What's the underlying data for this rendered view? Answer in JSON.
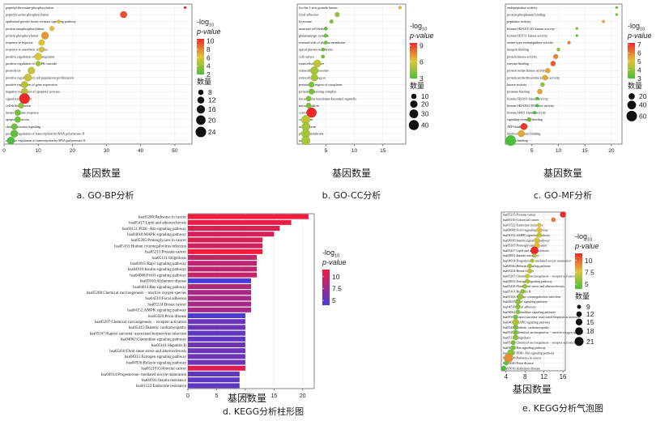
{
  "chart_data": [
    {
      "id": "a",
      "type": "scatter",
      "caption": "a.  GO-BP分析",
      "xlabel": "基因数量",
      "xlim": [
        0,
        55
      ],
      "xticks": [
        0,
        10,
        20,
        30,
        40,
        50
      ],
      "terms": [
        {
          "label": "peptidyl-threonine phosphorylation",
          "x": 53,
          "lp": 10.5,
          "n": 3
        },
        {
          "label": "peptidyl-serine phosphorylation",
          "x": 35,
          "lp": 9.5,
          "n": 12
        },
        {
          "label": "epidermal growth factor receptor signaling pathway",
          "x": 16,
          "lp": 6.0,
          "n": 5
        },
        {
          "label": "protein autophosphorylation",
          "x": 14,
          "lp": 6.5,
          "n": 7
        },
        {
          "label": "protein phosphorylation",
          "x": 12,
          "lp": 7.5,
          "n": 14
        },
        {
          "label": "response to hypoxia",
          "x": 11,
          "lp": 6.0,
          "n": 10
        },
        {
          "label": "response to anesthetic stimulus",
          "x": 11,
          "lp": 5.5,
          "n": 9
        },
        {
          "label": "positive regulation of cell migration",
          "x": 10,
          "lp": 6.0,
          "n": 13
        },
        {
          "label": "positive regulation of MAPK cascade",
          "x": 10,
          "lp": 4.5,
          "n": 8
        },
        {
          "label": "proteolysis",
          "x": 8,
          "lp": 5.5,
          "n": 13
        },
        {
          "label": "positive regulation of cell population proliferation",
          "x": 7,
          "lp": 5.5,
          "n": 14
        },
        {
          "label": "positive regulation of gene expression",
          "x": 6,
          "lp": 5.0,
          "n": 12
        },
        {
          "label": "negative regulation of apoptotic process",
          "x": 6,
          "lp": 5.0,
          "n": 12
        },
        {
          "label": "signal transduction",
          "x": 6,
          "lp": 10.5,
          "n": 24
        },
        {
          "label": "cell differentiation",
          "x": 5,
          "lp": 4.0,
          "n": 9
        },
        {
          "label": "innate immune response",
          "x": 4,
          "lp": 3.0,
          "n": 10
        },
        {
          "label": "apoptotic process",
          "x": 4,
          "lp": 3.0,
          "n": 10
        },
        {
          "label": "chemoattractant signaling",
          "x": 3,
          "lp": 3.0,
          "n": 10
        },
        {
          "label": "positive regulation of transcription by RNA polymerase II",
          "x": 3,
          "lp": 2.5,
          "n": 14
        },
        {
          "label": "negative regulation of transcription by RNA polymerase II",
          "x": 2,
          "lp": 2.0,
          "n": 14
        }
      ],
      "color_title": "-log10",
      "color_title_main": "-log",
      "color_title_sub": "10",
      "color_title2": "p-value",
      "color_ticks": [
        10,
        8,
        6,
        4,
        2
      ],
      "color_range": [
        2,
        10.5
      ],
      "size_title": "数量",
      "size_ticks": [
        8,
        12,
        16,
        20,
        24
      ],
      "size_range": [
        3,
        24
      ]
    },
    {
      "id": "b",
      "type": "scatter",
      "caption": "b.  GO-CC分析",
      "xlabel": "基因数量",
      "xlim": [
        0,
        19
      ],
      "xticks": [
        5,
        10,
        15
      ],
      "terms": [
        {
          "label": "ficolin-1-rich granule lumen",
          "x": 18,
          "lp": 6.5,
          "n": 3
        },
        {
          "label": "focal adhesion",
          "x": 7,
          "lp": 4.5,
          "n": 8
        },
        {
          "label": "lysosome",
          "x": 6,
          "lp": 4.0,
          "n": 5
        },
        {
          "label": "neuronal cell body",
          "x": 5,
          "lp": 3.5,
          "n": 4
        },
        {
          "label": "glutamatergic synapse",
          "x": 5,
          "lp": 3.5,
          "n": 4
        },
        {
          "label": "external side of plasma membrane",
          "x": 5,
          "lp": 3.5,
          "n": 4
        },
        {
          "label": "apical plasma membrane",
          "x": 4.5,
          "lp": 3.5,
          "n": 4
        },
        {
          "label": "cell surface",
          "x": 4.5,
          "lp": 3.5,
          "n": 4
        },
        {
          "label": "extracellular space",
          "x": 3.5,
          "lp": 5.5,
          "n": 22
        },
        {
          "label": "extracellular exosome",
          "x": 3,
          "lp": 5.0,
          "n": 26
        },
        {
          "label": "extracellular region",
          "x": 3,
          "lp": 5.0,
          "n": 20
        },
        {
          "label": "perinuclear region of cytoplasm",
          "x": 2.5,
          "lp": 4.0,
          "n": 12
        },
        {
          "label": "protein-containing complex",
          "x": 2.5,
          "lp": 4.0,
          "n": 12
        },
        {
          "label": "intracellular membrane-bounded organelle",
          "x": 2,
          "lp": 4.0,
          "n": 10
        },
        {
          "label": "mitochondrion",
          "x": 2,
          "lp": 4.0,
          "n": 10
        },
        {
          "label": "cytosol",
          "x": 2.5,
          "lp": 9.5,
          "n": 40
        },
        {
          "label": "cytoplasm",
          "x": 1.5,
          "lp": 5.5,
          "n": 30
        },
        {
          "label": "nucleoplasm",
          "x": 1.5,
          "lp": 5.0,
          "n": 28
        },
        {
          "label": "plasma membrane",
          "x": 1.5,
          "lp": 5.0,
          "n": 30
        },
        {
          "label": "nucleus",
          "x": 1.5,
          "lp": 5.0,
          "n": 30
        }
      ],
      "color_title": "-log10",
      "color_title_main": "-log",
      "color_title_sub": "10",
      "color_title2": "p-value",
      "color_ticks": [
        9,
        6,
        3
      ],
      "color_range": [
        3,
        9.5
      ],
      "size_title": "数量",
      "size_ticks": [
        10,
        20,
        30,
        40
      ],
      "size_range": [
        3,
        40
      ]
    },
    {
      "id": "c",
      "type": "scatter",
      "caption": "c.  GO-MF分析",
      "xlabel": "基因数量",
      "xlim": [
        0,
        22
      ],
      "xticks": [
        5,
        10,
        15,
        20
      ],
      "terms": [
        {
          "label": "endopeptidase activity",
          "x": 21,
          "lp": 3.5,
          "n": 3
        },
        {
          "label": "protein phosphatase binding",
          "x": 21,
          "lp": 3.5,
          "n": 3
        },
        {
          "label": "peptidase activity",
          "x": 18.5,
          "lp": 5.5,
          "n": 4
        },
        {
          "label": "histone H2AXY142 kinase activity",
          "x": 13.5,
          "lp": 3.5,
          "n": 3
        },
        {
          "label": "histone H3T11 kinase activity",
          "x": 13.5,
          "lp": 3.5,
          "n": 3
        },
        {
          "label": "serine-type endopeptidase activity",
          "x": 12,
          "lp": 6.0,
          "n": 5
        },
        {
          "label": "integrin binding",
          "x": 10,
          "lp": 4.0,
          "n": 6
        },
        {
          "label": "protein kinase activity",
          "x": 9.5,
          "lp": 6.0,
          "n": 12
        },
        {
          "label": "enzyme binding",
          "x": 9,
          "lp": 6.5,
          "n": 14
        },
        {
          "label": "protein serine kinase activity",
          "x": 8,
          "lp": 5.5,
          "n": 14
        },
        {
          "label": "protein serine/threonine kinase activity",
          "x": 7.5,
          "lp": 5.5,
          "n": 15
        },
        {
          "label": "kinase activity",
          "x": 7,
          "lp": 4.0,
          "n": 10
        },
        {
          "label": "protease binding",
          "x": 6.5,
          "lp": 5.5,
          "n": 14
        },
        {
          "label": "histone H2AS1 kinase activity",
          "x": 6,
          "lp": 3.0,
          "n": 5
        },
        {
          "label": "histone H2AXS139 kinase activity",
          "x": 6,
          "lp": 3.0,
          "n": 5
        },
        {
          "label": "histone H4S1 kinase activity",
          "x": 5.5,
          "lp": 3.0,
          "n": 5
        },
        {
          "label": "signaling receptor binding",
          "x": 4.5,
          "lp": 3.5,
          "n": 10
        },
        {
          "label": "ATP binding",
          "x": 3.5,
          "lp": 7.0,
          "n": 25
        },
        {
          "label": "identical protein binding",
          "x": 3,
          "lp": 5.5,
          "n": 24
        },
        {
          "label": "protein binding",
          "x": 1,
          "lp": 3.0,
          "n": 60
        }
      ],
      "color_title": "-log10",
      "color_title_main": "-log",
      "color_title_sub": "10",
      "color_title2": "p-value",
      "color_ticks": [
        7,
        6,
        5,
        4,
        3
      ],
      "color_range": [
        3,
        7.2
      ],
      "size_title": "数量",
      "size_ticks": [
        20,
        40,
        60
      ],
      "size_range": [
        3,
        60
      ]
    },
    {
      "id": "d",
      "type": "bar",
      "orientation": "horizontal",
      "caption": "d.  KEGG分析柱形图",
      "xlabel": "基因数量",
      "xlim": [
        0,
        22
      ],
      "xticks": [
        0,
        5,
        10,
        15,
        20
      ],
      "categories": [
        "hsa05200:Pathways in cancer",
        "hsa05417:Lipid and atherosclerosis",
        "hsa04151:PI3K−Akt signaling pathway",
        "hsa04010:MAPK signaling pathway",
        "hsa05205:Proteoglycans in cancer",
        "hsa05163:Human cytomegalovirus infection",
        "hsa05215:Prostate cancer",
        "hsa05131:Shigellosis",
        "hsa04015:Rap1 signaling pathway",
        "hsa04910:Insulin signaling pathway",
        "hsa04068:FoxO signaling pathway",
        "hsa05010:Alzheimer disease",
        "hsa04014:Ras signaling pathway",
        "hsa05208:Chemical carcinogenesis − reactive oxygen species",
        "hsa04510:Focal adhesion",
        "hsa05224:Breast cancer",
        "hsa04152:AMPK signaling pathway",
        "hsa05020:Prion disease",
        "hsa05207:Chemical carcinogenesis − receptor activation",
        "hsa05415:Diabetic cardiomyopathy",
        "hsa05167:Kaposi sarcoma−associated herpesvirus infection",
        "hsa04062:Chemokine signaling pathway",
        "hsa05161:Hepatitis B",
        "hsa05418:Fluid shear stress and atherosclerosis",
        "hsa04915:Estrogen signaling pathway",
        "hsa04926:Relaxin signaling pathway",
        "hsa05210:Colorectal cancer",
        "hsa04914:Progesterone−mediated oocyte maturation",
        "hsa04931:Insulin resistance",
        "hsa01522:Endocrine resistance"
      ],
      "values": [
        21,
        18,
        16,
        15,
        13,
        13,
        13,
        12,
        12,
        12,
        12,
        11,
        11,
        11,
        11,
        11,
        11,
        10,
        10,
        10,
        10,
        10,
        10,
        10,
        10,
        10,
        10,
        9,
        9,
        9
      ],
      "lp": [
        11.5,
        11.0,
        10.5,
        10.0,
        10.5,
        10.0,
        11.5,
        9.5,
        9.0,
        9.0,
        9.5,
        4.0,
        8.5,
        8.0,
        8.0,
        8.0,
        8.0,
        4.0,
        5.5,
        5.5,
        5.0,
        5.0,
        5.5,
        5.5,
        5.5,
        5.5,
        10.5,
        5.0,
        5.0,
        5.0
      ],
      "color_title": "-log10",
      "color_title_main": "-log",
      "color_title_sub": "10",
      "color_title2": "p-value",
      "color_ticks": [
        10.0,
        7.5,
        5.0
      ],
      "color_range": [
        4,
        11.5
      ]
    },
    {
      "id": "e",
      "type": "scatter",
      "caption": "e.  KEGG分析气泡图",
      "xlabel": "基因数量",
      "xlim": [
        3,
        16.5
      ],
      "xticks": [
        4,
        8,
        12,
        16
      ],
      "terms": [
        {
          "label": "hsa05215:Prostate cancer",
          "x": 16,
          "lp": 11.5,
          "n": 13
        },
        {
          "label": "hsa05210:Colorectal cancer",
          "x": 14,
          "lp": 9.5,
          "n": 10
        },
        {
          "label": "hsa01522:Endocrine resistance",
          "x": 11,
          "lp": 7.5,
          "n": 9
        },
        {
          "label": "hsa04068:FoxO signaling pathway",
          "x": 11,
          "lp": 8.0,
          "n": 12
        },
        {
          "label": "hsa04152:AMPK signaling pathway",
          "x": 11,
          "lp": 7.0,
          "n": 11
        },
        {
          "label": "hsa04910:Insulin signaling pathway",
          "x": 10.5,
          "lp": 7.5,
          "n": 12
        },
        {
          "label": "hsa05205:Proteoglycans in cancer",
          "x": 10.5,
          "lp": 8.0,
          "n": 13
        },
        {
          "label": "hsa05417:Lipid and atherosclerosis",
          "x": 10,
          "lp": 11.5,
          "n": 18
        },
        {
          "label": "hsa04931:Insulin resistance",
          "x": 10,
          "lp": 6.5,
          "n": 9
        },
        {
          "label": "hsa04914:Progesterone−mediated oocyte maturation",
          "x": 9.5,
          "lp": 6.5,
          "n": 9
        },
        {
          "label": "hsa04926:Relaxin signaling pathway",
          "x": 9,
          "lp": 6.5,
          "n": 10
        },
        {
          "label": "hsa05224:Breast cancer",
          "x": 9,
          "lp": 7.0,
          "n": 11
        },
        {
          "label": "hsa05207:Chemical carcinogenesis − receptor activation",
          "x": 8.5,
          "lp": 7.0,
          "n": 10
        },
        {
          "label": "hsa04915:Estrogen signaling pathway",
          "x": 8.5,
          "lp": 6.5,
          "n": 10
        },
        {
          "label": "hsa05418:Fluid shear stress and atherosclerosis",
          "x": 8,
          "lp": 6.0,
          "n": 10
        },
        {
          "label": "hsa05161:Hepatitis B",
          "x": 7.5,
          "lp": 5.5,
          "n": 10
        },
        {
          "label": "hsa05163:Human cytomegalovirus infection",
          "x": 7,
          "lp": 6.0,
          "n": 13
        },
        {
          "label": "hsa04015:Rap1 signaling pathway",
          "x": 6.5,
          "lp": 5.5,
          "n": 12
        },
        {
          "label": "hsa04510:Focal adhesion",
          "x": 6.5,
          "lp": 5.5,
          "n": 11
        },
        {
          "label": "hsa04062:Chemokine signaling pathway",
          "x": 6.5,
          "lp": 5.5,
          "n": 10
        },
        {
          "label": "hsa05167:Kaposi sarcoma−associated herpesvirus infection",
          "x": 6,
          "lp": 5.0,
          "n": 10
        },
        {
          "label": "hsa04010:MAPK signaling pathway",
          "x": 6,
          "lp": 6.5,
          "n": 15
        },
        {
          "label": "hsa05415:Diabetic cardiomyopathy",
          "x": 6,
          "lp": 5.0,
          "n": 10
        },
        {
          "label": "hsa05208:Chemical carcinogenesis − reactive oxygen species",
          "x": 6,
          "lp": 5.0,
          "n": 11
        },
        {
          "label": "hsa05131:Shigellosis",
          "x": 6,
          "lp": 5.5,
          "n": 12
        },
        {
          "label": "hsa05207:Chemical carcinogenesis − receptor activation",
          "x": 5.5,
          "lp": 5.0,
          "n": 10
        },
        {
          "label": "hsa04014:Ras signaling pathway",
          "x": 5.5,
          "lp": 5.0,
          "n": 11
        },
        {
          "label": "hsa04151:PI3K−Akt signaling pathway",
          "x": 5,
          "lp": 5.5,
          "n": 16
        },
        {
          "label": "hsa05200:Pathways in cancer",
          "x": 4.5,
          "lp": 9.0,
          "n": 21
        },
        {
          "label": "hsa05020:Prion disease",
          "x": 4,
          "lp": 4.5,
          "n": 10
        },
        {
          "label": "hsa05010:Alzheimer disease",
          "x": 3.5,
          "lp": 4.0,
          "n": 11
        }
      ],
      "color_title": "-log10",
      "color_title_main": "-log",
      "color_title_sub": "10",
      "color_title2": "p-value",
      "color_ticks": [
        10.0,
        7.5,
        5.0
      ],
      "color_range": [
        4,
        11.5
      ],
      "size_title": "数量",
      "size_ticks": [
        9,
        12,
        15,
        18,
        21
      ],
      "size_range": [
        9,
        21
      ]
    }
  ],
  "colors": {
    "low": "#4dbe3c",
    "mid": "#e0c43a",
    "high": "#ec2a2a",
    "bar_low": "#4a3bd6",
    "bar_high": "#f21b3c",
    "grid": "#e6e6e6",
    "axis": "#333333"
  }
}
